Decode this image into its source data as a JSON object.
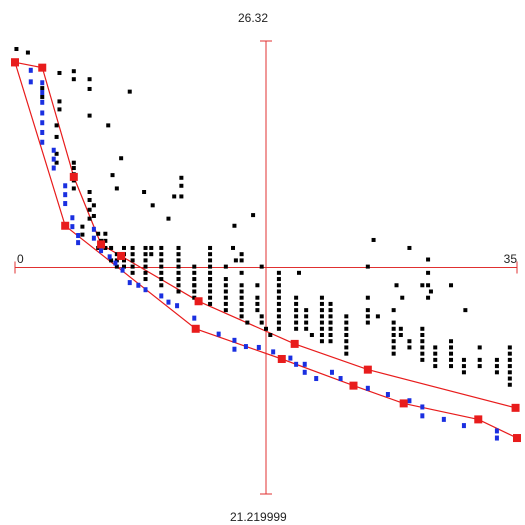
{
  "chart_data": {
    "type": "scatter",
    "x_axis": {
      "min_label": "0",
      "max_label": "35",
      "min": 0,
      "max": 35
    },
    "y_axis": {
      "top_label": "26.32",
      "bottom_label": "21.219999",
      "min": 21.219999,
      "max": 26.32
    },
    "axes_color": "#e03030",
    "grid": false,
    "series": [
      {
        "role": "points",
        "color": "#000000",
        "points": [
          [
            0.1,
            26.23
          ],
          [
            0.9,
            26.19
          ],
          [
            3.1,
            25.96
          ],
          [
            4.1,
            25.98
          ],
          [
            4.1,
            25.89
          ],
          [
            1.9,
            25.79
          ],
          [
            1.9,
            25.69
          ],
          [
            3.1,
            25.64
          ],
          [
            3.1,
            25.55
          ],
          [
            5.2,
            25.89
          ],
          [
            5.2,
            25.78
          ],
          [
            8.0,
            25.75
          ],
          [
            5.2,
            25.48
          ],
          [
            6.5,
            25.37
          ],
          [
            7.4,
            25.0
          ],
          [
            2.9,
            25.37
          ],
          [
            2.9,
            25.24
          ],
          [
            2.9,
            25.05
          ],
          [
            2.9,
            24.95
          ],
          [
            4.1,
            24.95
          ],
          [
            4.1,
            24.89
          ],
          [
            4.1,
            24.82
          ],
          [
            4.1,
            24.75
          ],
          [
            4.1,
            24.66
          ],
          [
            5.2,
            24.62
          ],
          [
            5.2,
            24.53
          ],
          [
            5.2,
            24.42
          ],
          [
            5.2,
            24.32
          ],
          [
            5.5,
            24.47
          ],
          [
            5.5,
            24.35
          ],
          [
            4.7,
            24.23
          ],
          [
            4.7,
            24.14
          ],
          [
            6.8,
            24.81
          ],
          [
            7.1,
            24.66
          ],
          [
            11.6,
            24.78
          ],
          [
            11.6,
            24.69
          ],
          [
            9.0,
            24.62
          ],
          [
            11.1,
            24.57
          ],
          [
            11.6,
            24.57
          ],
          [
            9.6,
            24.47
          ],
          [
            10.7,
            24.32
          ],
          [
            15.3,
            24.24
          ],
          [
            16.6,
            24.36
          ],
          [
            5.8,
            24.15
          ],
          [
            6.0,
            24.07
          ],
          [
            6.3,
            24.15
          ],
          [
            6.3,
            24.07
          ],
          [
            5.8,
            23.99
          ],
          [
            6.3,
            23.99
          ],
          [
            6.7,
            23.99
          ],
          [
            7.6,
            23.99
          ],
          [
            8.2,
            23.99
          ],
          [
            9.1,
            23.99
          ],
          [
            9.5,
            23.99
          ],
          [
            7.1,
            23.92
          ],
          [
            7.6,
            23.92
          ],
          [
            8.2,
            23.92
          ],
          [
            9.1,
            23.92
          ],
          [
            9.5,
            23.92
          ],
          [
            10.2,
            23.92
          ],
          [
            6.7,
            23.85
          ],
          [
            7.1,
            23.85
          ],
          [
            7.6,
            23.85
          ],
          [
            8.2,
            23.85
          ],
          [
            9.1,
            23.85
          ],
          [
            10.2,
            23.85
          ],
          [
            11.4,
            23.85
          ],
          [
            7.1,
            23.78
          ],
          [
            7.6,
            23.78
          ],
          [
            8.2,
            23.78
          ],
          [
            9.1,
            23.78
          ],
          [
            10.2,
            23.78
          ],
          [
            11.4,
            23.78
          ],
          [
            12.5,
            23.78
          ],
          [
            13.6,
            23.78
          ],
          [
            8.2,
            23.71
          ],
          [
            9.1,
            23.71
          ],
          [
            10.2,
            23.71
          ],
          [
            11.4,
            23.71
          ],
          [
            12.5,
            23.71
          ],
          [
            13.6,
            23.71
          ],
          [
            14.7,
            23.78
          ],
          [
            9.1,
            23.64
          ],
          [
            10.2,
            23.64
          ],
          [
            11.4,
            23.64
          ],
          [
            12.5,
            23.64
          ],
          [
            13.6,
            23.64
          ],
          [
            14.7,
            23.64
          ],
          [
            15.8,
            23.71
          ],
          [
            10.2,
            23.57
          ],
          [
            11.4,
            23.57
          ],
          [
            12.5,
            23.57
          ],
          [
            13.6,
            23.57
          ],
          [
            14.7,
            23.57
          ],
          [
            15.8,
            23.57
          ],
          [
            11.4,
            23.5
          ],
          [
            12.5,
            23.5
          ],
          [
            13.6,
            23.5
          ],
          [
            14.7,
            23.5
          ],
          [
            15.8,
            23.5
          ],
          [
            16.9,
            23.57
          ],
          [
            12.5,
            23.43
          ],
          [
            13.6,
            23.43
          ],
          [
            14.7,
            23.43
          ],
          [
            15.8,
            23.43
          ],
          [
            16.9,
            23.43
          ],
          [
            13.6,
            23.36
          ],
          [
            14.7,
            23.36
          ],
          [
            15.8,
            23.36
          ],
          [
            16.9,
            23.36
          ],
          [
            14.7,
            23.29
          ],
          [
            15.8,
            23.29
          ],
          [
            16.9,
            23.29
          ],
          [
            17.2,
            23.22
          ],
          [
            15.8,
            23.22
          ],
          [
            16.2,
            23.15
          ],
          [
            17.2,
            23.15
          ],
          [
            17.5,
            23.08
          ],
          [
            17.8,
            23.01
          ],
          [
            13.6,
            23.99
          ],
          [
            13.6,
            23.92
          ],
          [
            13.6,
            23.85
          ],
          [
            13.6,
            23.64
          ],
          [
            12.5,
            23.57
          ],
          [
            11.4,
            23.99
          ],
          [
            11.4,
            23.92
          ],
          [
            10.2,
            23.99
          ],
          [
            15.4,
            23.85
          ],
          [
            15.8,
            23.92
          ],
          [
            15.8,
            23.85
          ],
          [
            17.2,
            23.78
          ],
          [
            18.4,
            23.71
          ],
          [
            18.4,
            23.64
          ],
          [
            18.4,
            23.57
          ],
          [
            18.4,
            23.5
          ],
          [
            18.4,
            23.43
          ],
          [
            18.4,
            23.36
          ],
          [
            18.4,
            23.29
          ],
          [
            18.4,
            23.22
          ],
          [
            18.4,
            23.15
          ],
          [
            18.4,
            23.08
          ],
          [
            19.6,
            23.43
          ],
          [
            19.6,
            23.36
          ],
          [
            19.6,
            23.29
          ],
          [
            19.6,
            23.22
          ],
          [
            19.6,
            23.15
          ],
          [
            19.6,
            23.08
          ],
          [
            20.3,
            23.29
          ],
          [
            20.3,
            23.22
          ],
          [
            20.3,
            23.15
          ],
          [
            20.3,
            23.08
          ],
          [
            20.7,
            23.01
          ],
          [
            21.4,
            23.43
          ],
          [
            21.4,
            23.36
          ],
          [
            21.4,
            23.29
          ],
          [
            21.4,
            23.22
          ],
          [
            21.4,
            23.15
          ],
          [
            21.4,
            23.08
          ],
          [
            21.4,
            23.01
          ],
          [
            21.4,
            22.94
          ],
          [
            22.0,
            23.36
          ],
          [
            22.0,
            23.29
          ],
          [
            22.0,
            23.22
          ],
          [
            22.0,
            23.15
          ],
          [
            22.0,
            23.08
          ],
          [
            22.0,
            23.01
          ],
          [
            22.0,
            22.94
          ],
          [
            23.1,
            23.22
          ],
          [
            23.1,
            23.15
          ],
          [
            23.1,
            23.08
          ],
          [
            23.1,
            23.01
          ],
          [
            23.1,
            22.94
          ],
          [
            23.1,
            22.87
          ],
          [
            23.1,
            22.8
          ],
          [
            24.6,
            23.43
          ],
          [
            24.6,
            23.29
          ],
          [
            24.6,
            23.22
          ],
          [
            24.6,
            23.15
          ],
          [
            25.3,
            23.22
          ],
          [
            26.4,
            23.29
          ],
          [
            26.4,
            23.15
          ],
          [
            26.4,
            23.08
          ],
          [
            26.4,
            23.01
          ],
          [
            26.4,
            22.94
          ],
          [
            26.4,
            22.87
          ],
          [
            26.4,
            22.8
          ],
          [
            26.9,
            23.08
          ],
          [
            26.9,
            23.01
          ],
          [
            27.5,
            22.94
          ],
          [
            27.5,
            22.87
          ],
          [
            28.4,
            23.08
          ],
          [
            28.4,
            23.01
          ],
          [
            28.4,
            22.94
          ],
          [
            28.4,
            22.87
          ],
          [
            28.4,
            22.8
          ],
          [
            28.4,
            22.73
          ],
          [
            29.3,
            22.87
          ],
          [
            29.3,
            22.8
          ],
          [
            29.3,
            22.73
          ],
          [
            29.3,
            22.66
          ],
          [
            30.4,
            22.94
          ],
          [
            30.4,
            22.87
          ],
          [
            30.4,
            22.8
          ],
          [
            30.4,
            22.73
          ],
          [
            30.4,
            22.66
          ],
          [
            31.3,
            22.73
          ],
          [
            31.3,
            22.66
          ],
          [
            31.3,
            22.59
          ],
          [
            32.4,
            22.87
          ],
          [
            32.4,
            22.73
          ],
          [
            32.4,
            22.66
          ],
          [
            33.6,
            22.73
          ],
          [
            33.6,
            22.66
          ],
          [
            33.6,
            22.59
          ],
          [
            34.5,
            22.87
          ],
          [
            34.5,
            22.8
          ],
          [
            34.5,
            22.73
          ],
          [
            34.5,
            22.66
          ],
          [
            34.5,
            22.59
          ],
          [
            34.5,
            22.52
          ],
          [
            34.5,
            22.45
          ],
          [
            24.6,
            23.78
          ],
          [
            26.6,
            23.57
          ],
          [
            27.0,
            23.43
          ],
          [
            28.4,
            23.57
          ],
          [
            29.0,
            23.5
          ],
          [
            30.4,
            23.57
          ],
          [
            31.4,
            23.29
          ],
          [
            15.2,
            23.99
          ],
          [
            19.8,
            23.71
          ],
          [
            27.5,
            23.99
          ],
          [
            28.8,
            23.86
          ],
          [
            28.8,
            23.71
          ],
          [
            28.8,
            23.57
          ],
          [
            28.8,
            23.43
          ],
          [
            25.0,
            24.08
          ]
        ]
      },
      {
        "role": "frontier-points",
        "color": "#1a2fe0",
        "points": [
          [
            1.1,
            25.99
          ],
          [
            1.1,
            25.86
          ],
          [
            1.9,
            25.85
          ],
          [
            1.9,
            25.74
          ],
          [
            1.9,
            25.63
          ],
          [
            1.9,
            25.51
          ],
          [
            1.9,
            25.4
          ],
          [
            1.9,
            25.29
          ],
          [
            1.9,
            25.18
          ],
          [
            2.7,
            25.09
          ],
          [
            2.7,
            24.99
          ],
          [
            2.7,
            24.89
          ],
          [
            3.5,
            24.69
          ],
          [
            3.5,
            24.59
          ],
          [
            3.5,
            24.49
          ],
          [
            4.0,
            24.33
          ],
          [
            4.0,
            24.23
          ],
          [
            4.4,
            24.13
          ],
          [
            4.4,
            24.05
          ],
          [
            5.5,
            24.2
          ],
          [
            5.5,
            24.1
          ],
          [
            6.0,
            23.96
          ],
          [
            6.6,
            23.89
          ],
          [
            7.0,
            23.82
          ],
          [
            7.5,
            23.74
          ],
          [
            8.0,
            23.6
          ],
          [
            8.6,
            23.57
          ],
          [
            9.1,
            23.52
          ],
          [
            10.2,
            23.45
          ],
          [
            10.7,
            23.38
          ],
          [
            11.3,
            23.34
          ],
          [
            12.5,
            23.2
          ],
          [
            14.2,
            23.02
          ],
          [
            15.3,
            22.95
          ],
          [
            15.3,
            22.85
          ],
          [
            16.1,
            22.88
          ],
          [
            17.0,
            22.87
          ],
          [
            18.0,
            22.82
          ],
          [
            19.2,
            22.75
          ],
          [
            19.6,
            22.68
          ],
          [
            20.2,
            22.68
          ],
          [
            20.2,
            22.59
          ],
          [
            21.0,
            22.52
          ],
          [
            22.1,
            22.59
          ],
          [
            22.7,
            22.52
          ],
          [
            23.6,
            22.44
          ],
          [
            24.6,
            22.41
          ],
          [
            26.0,
            22.34
          ],
          [
            27.5,
            22.27
          ],
          [
            28.4,
            22.2
          ],
          [
            28.4,
            22.1
          ],
          [
            29.9,
            22.06
          ],
          [
            31.3,
            21.99
          ],
          [
            33.6,
            21.93
          ],
          [
            33.6,
            21.85
          ]
        ]
      },
      {
        "role": "upper-hull",
        "color": "#e81c1c",
        "points": [
          [
            0.0,
            26.08
          ],
          [
            1.9,
            26.02
          ],
          [
            4.1,
            24.79
          ],
          [
            6.0,
            24.03
          ],
          [
            7.4,
            23.9
          ],
          [
            12.8,
            23.39
          ],
          [
            19.5,
            22.91
          ],
          [
            24.6,
            22.62
          ],
          [
            34.9,
            22.19
          ]
        ]
      },
      {
        "role": "lower-hull",
        "color": "#e81c1c",
        "points": [
          [
            0.0,
            26.08
          ],
          [
            3.5,
            24.24
          ],
          [
            12.6,
            23.08
          ],
          [
            18.6,
            22.74
          ],
          [
            23.6,
            22.44
          ],
          [
            27.1,
            22.24
          ],
          [
            32.3,
            22.06
          ],
          [
            35.0,
            21.85
          ]
        ]
      }
    ]
  }
}
